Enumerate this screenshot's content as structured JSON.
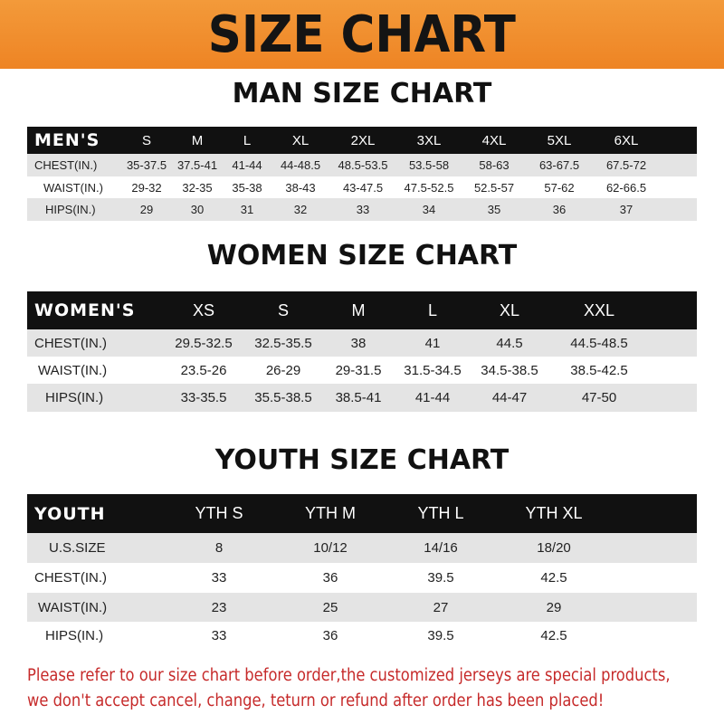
{
  "banner": {
    "title": "SIZE CHART",
    "color": "#ee8424"
  },
  "men": {
    "title": "MAN SIZE CHART",
    "header_label": "MEN'S",
    "sizes": [
      "S",
      "M",
      "L",
      "XL",
      "2XL",
      "3XL",
      "4XL",
      "5XL",
      "6XL"
    ],
    "rows": [
      {
        "label": "CHEST(IN.)",
        "values": [
          "35-37.5",
          "37.5-41",
          "41-44",
          "44-48.5",
          "48.5-53.5",
          "53.5-58",
          "58-63",
          "63-67.5",
          "67.5-72"
        ]
      },
      {
        "label": "WAIST(IN.)",
        "values": [
          "29-32",
          "32-35",
          "35-38",
          "38-43",
          "43-47.5",
          "47.5-52.5",
          "52.5-57",
          "57-62",
          "62-66.5"
        ]
      },
      {
        "label": "HIPS(IN.)",
        "values": [
          "29",
          "30",
          "31",
          "32",
          "33",
          "34",
          "35",
          "36",
          "37"
        ]
      }
    ]
  },
  "women": {
    "title": "WOMEN SIZE CHART",
    "header_label": "WOMEN'S",
    "sizes": [
      "XS",
      "S",
      "M",
      "L",
      "XL",
      "XXL"
    ],
    "rows": [
      {
        "label": "CHEST(IN.)",
        "values": [
          "29.5-32.5",
          "32.5-35.5",
          "38",
          "41",
          "44.5",
          "44.5-48.5"
        ]
      },
      {
        "label": "WAIST(IN.)",
        "values": [
          "23.5-26",
          "26-29",
          "29-31.5",
          "31.5-34.5",
          "34.5-38.5",
          "38.5-42.5"
        ]
      },
      {
        "label": "HIPS(IN.)",
        "values": [
          "33-35.5",
          "35.5-38.5",
          "38.5-41",
          "41-44",
          "44-47",
          "47-50"
        ]
      }
    ]
  },
  "youth": {
    "title": "YOUTH SIZE CHART",
    "header_label": "YOUTH",
    "sizes": [
      "YTH S",
      "YTH M",
      "YTH L",
      "YTH XL"
    ],
    "rows": [
      {
        "label": "U.S.SIZE",
        "values": [
          "8",
          "10/12",
          "14/16",
          "18/20"
        ]
      },
      {
        "label": "CHEST(IN.)",
        "values": [
          "33",
          "36",
          "39.5",
          "42.5"
        ]
      },
      {
        "label": "WAIST(IN.)",
        "values": [
          "23",
          "25",
          "27",
          "29"
        ]
      },
      {
        "label": "HIPS(IN.)",
        "values": [
          "33",
          "36",
          "39.5",
          "42.5"
        ]
      }
    ]
  },
  "footer": {
    "line1": "Please refer to our size chart before order,the customized jerseys are special products,",
    "line2": "we don't accept cancel, change, teturn or refund after order has been placed!",
    "color": "#c62a2a"
  }
}
